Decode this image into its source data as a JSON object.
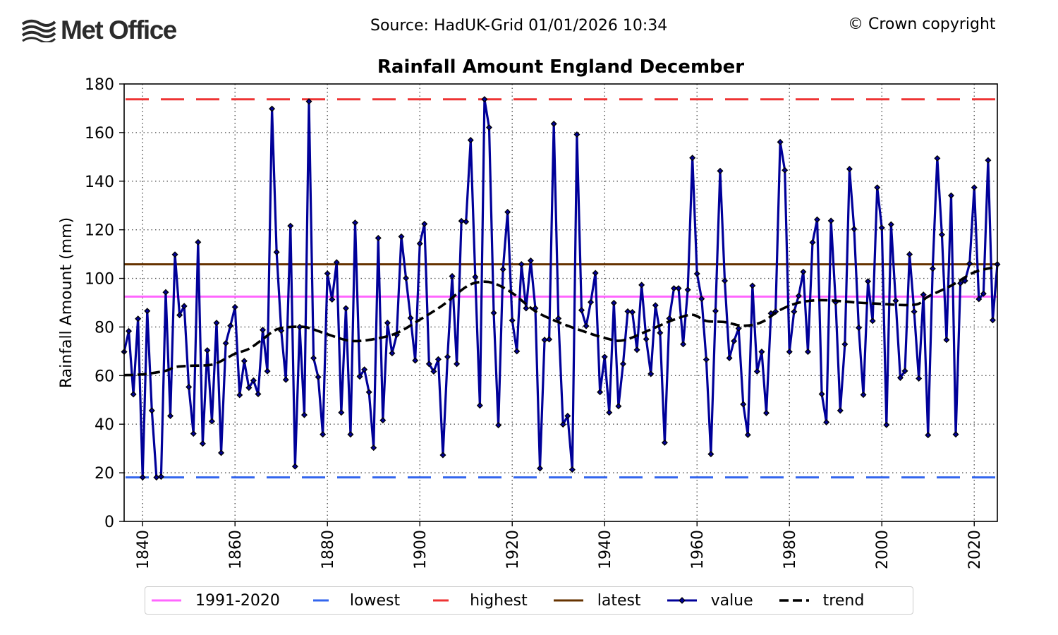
{
  "header": {
    "logo_text": "Met Office",
    "source": "Source: HadUK-Grid 01/01/2026 10:34",
    "copyright": "© Crown copyright"
  },
  "colors": {
    "average": "#ff66ff",
    "lowest": "#3366ee",
    "highest": "#ee3333",
    "latest": "#663300",
    "value": "#000099",
    "trend": "#000000",
    "grid": "#555555"
  },
  "legend": [
    {
      "key": "average",
      "label": "1991-2020",
      "style": "solid"
    },
    {
      "key": "lowest",
      "label": "lowest",
      "style": "dashed"
    },
    {
      "key": "highest",
      "label": "highest",
      "style": "dashed"
    },
    {
      "key": "latest",
      "label": "latest",
      "style": "solid"
    },
    {
      "key": "value",
      "label": "value",
      "style": "marker"
    },
    {
      "key": "trend",
      "label": "trend",
      "style": "dashed"
    }
  ],
  "chart_data": {
    "type": "line",
    "title": "Rainfall Amount England December",
    "xlabel": "",
    "ylabel": "Rainfall Amount (mm)",
    "xlim": [
      1836,
      2025
    ],
    "ylim": [
      0,
      180
    ],
    "xticks": [
      1840,
      1860,
      1880,
      1900,
      1920,
      1940,
      1960,
      1980,
      2000,
      2020
    ],
    "yticks": [
      0,
      20,
      40,
      60,
      80,
      100,
      120,
      140,
      160,
      180
    ],
    "grid": true,
    "legend_position": "bottom-center",
    "reference_lines": {
      "average_1991_2020": 92.5,
      "lowest": 18.1,
      "highest": 173.7,
      "latest": 105.8
    },
    "x_start": 1836,
    "series": [
      {
        "name": "value",
        "values": [
          69.8,
          78.3,
          52.3,
          83.4,
          18.1,
          86.6,
          45.6,
          18.1,
          18.4,
          94.3,
          43.4,
          109.8,
          84.9,
          88.6,
          55.3,
          36.1,
          114.9,
          32.0,
          70.4,
          41.2,
          81.7,
          28.2,
          73.3,
          80.5,
          88.2,
          52.0,
          66.0,
          55.0,
          58.0,
          52.4,
          78.8,
          61.8,
          169.8,
          110.8,
          78.5,
          58.3,
          121.6,
          22.6,
          80.0,
          43.8,
          172.8,
          67.2,
          59.4,
          35.8,
          102.0,
          91.3,
          106.6,
          44.8,
          87.7,
          35.8,
          122.9,
          59.6,
          62.5,
          53.2,
          30.3,
          116.6,
          41.6,
          81.7,
          69.2,
          76.8,
          117.2,
          100.1,
          83.7,
          66.2,
          114.3,
          122.4,
          64.8,
          61.7,
          66.7,
          27.3,
          67.7,
          100.9,
          64.8,
          123.6,
          123.3,
          156.9,
          100.6,
          47.7,
          173.7,
          162.1,
          85.8,
          39.6,
          103.7,
          127.3,
          82.7,
          70.0,
          105.8,
          87.7,
          107.3,
          87.7,
          21.8,
          74.7,
          74.9,
          163.6,
          83.5,
          39.9,
          43.4,
          21.3,
          159.2,
          86.9,
          80.4,
          90.2,
          102.2,
          53.2,
          67.7,
          44.8,
          89.9,
          47.4,
          64.8,
          86.4,
          86.1,
          70.6,
          97.3,
          75.0,
          60.7,
          88.9,
          77.6,
          32.4,
          83.5,
          95.9,
          95.9,
          72.9,
          95.3,
          149.6,
          101.9,
          91.6,
          66.6,
          27.7,
          86.6,
          144.2,
          99.0,
          67.2,
          74.2,
          79.4,
          48.2,
          35.6,
          97.0,
          61.7,
          69.8,
          44.6,
          85.6,
          86.3,
          156.1,
          144.5,
          69.8,
          86.3,
          92.8,
          102.7,
          69.8,
          114.8,
          124.2,
          52.4,
          40.8,
          123.7,
          90.2,
          45.6,
          72.9,
          145.0,
          120.3,
          79.7,
          52.1,
          98.8,
          82.5,
          137.4,
          120.8,
          39.7,
          122.2,
          90.8,
          59.1,
          61.9,
          109.9,
          86.3,
          58.8,
          93.3,
          35.5,
          104.0,
          149.4,
          118.0,
          74.7,
          134.1,
          35.8,
          98.0,
          99.0,
          106.1,
          137.4,
          91.5,
          93.7,
          148.6,
          82.8,
          105.8
        ]
      },
      {
        "name": "trend",
        "x": [
          1836,
          1840,
          1845,
          1847,
          1850,
          1855,
          1858,
          1860,
          1863,
          1866,
          1869,
          1872,
          1875,
          1877,
          1880,
          1885,
          1890,
          1895,
          1900,
          1905,
          1910,
          1913,
          1916,
          1920,
          1925,
          1930,
          1935,
          1940,
          1944,
          1950,
          1955,
          1959,
          1962,
          1966,
          1970,
          1974,
          1978,
          1982,
          1986,
          1990,
          1995,
          2000,
          2005,
          2008,
          2010,
          2015,
          2020,
          2025
        ],
        "values": [
          60.2,
          60.5,
          62.0,
          63.5,
          64.0,
          64.5,
          67.0,
          69.0,
          71.0,
          75.0,
          79.0,
          80.0,
          80.0,
          79.0,
          77.0,
          74.3,
          75.0,
          77.5,
          83.0,
          89.0,
          96.5,
          98.5,
          98.0,
          94.0,
          86.5,
          82.0,
          78.5,
          75.5,
          74.5,
          79.0,
          83.0,
          85.0,
          82.5,
          82.0,
          80.5,
          82.0,
          87.0,
          90.0,
          91.0,
          90.8,
          90.0,
          89.5,
          89.0,
          89.6,
          92.5,
          97.0,
          102.5,
          104.8
        ]
      }
    ]
  }
}
